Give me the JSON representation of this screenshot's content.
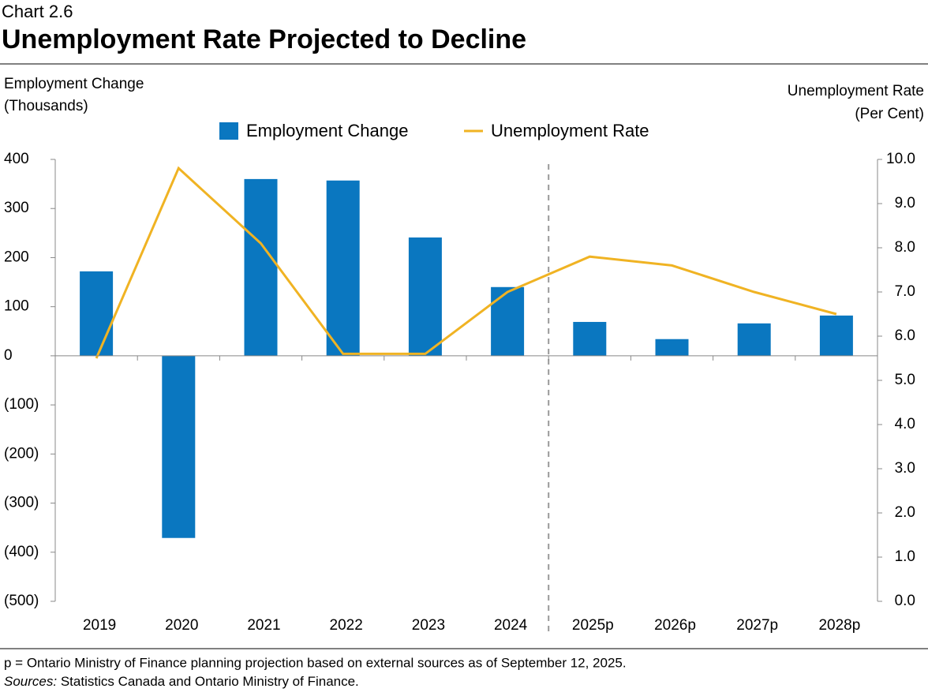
{
  "chart_data": {
    "type": "bar-line",
    "chart_number": "Chart 2.6",
    "title": "Unemployment Rate Projected to Decline",
    "y_label": [
      "Employment Change",
      "(Thousands)"
    ],
    "y2_label": [
      "Unemployment Rate",
      "(Per Cent)"
    ],
    "categories": [
      "2019",
      "2020",
      "2021",
      "2022",
      "2023",
      "2024",
      "2025p",
      "2026p",
      "2027p",
      "2028p"
    ],
    "series": [
      {
        "name": "Employment Change",
        "color": "#0a77c0",
        "kind": "bar",
        "values": [
          172,
          -371,
          360,
          357,
          241,
          140,
          69,
          34,
          66,
          82
        ]
      },
      {
        "name": "Unemployment Rate",
        "color": "#f0b323",
        "kind": "line",
        "axis": "y2",
        "values": [
          5.5,
          9.8,
          8.1,
          5.6,
          5.6,
          7.0,
          7.8,
          7.6,
          7.0,
          6.5
        ]
      }
    ],
    "ylim": [
      -500,
      400
    ],
    "yticks": [
      {
        "value": -500,
        "label": "(500)"
      },
      {
        "value": -400,
        "label": "(400)"
      },
      {
        "value": -300,
        "label": "(300)"
      },
      {
        "value": -200,
        "label": "(200)"
      },
      {
        "value": -100,
        "label": "(100)"
      },
      0,
      100,
      200,
      300,
      400
    ],
    "y2lim": [
      0,
      10
    ],
    "y2ticks": [
      {
        "value": 0,
        "label": "0.0"
      },
      {
        "value": 1,
        "label": "1.0"
      },
      {
        "value": 2,
        "label": "2.0"
      },
      {
        "value": 3,
        "label": "3.0"
      },
      {
        "value": 4,
        "label": "4.0"
      },
      {
        "value": 5,
        "label": "5.0"
      },
      {
        "value": 6,
        "label": "6.0"
      },
      {
        "value": 7,
        "label": "7.0"
      },
      {
        "value": 8,
        "label": "8.0"
      },
      {
        "value": 9,
        "label": "9.0"
      },
      {
        "value": 10,
        "label": "10.0"
      }
    ],
    "footnote": "p = Ontario Ministry of Finance planning projection based on external sources as of September 12, 2025.",
    "sources_label": "Sources:",
    "sources": "Statistics Canada and Ontario Ministry of Finance."
  }
}
